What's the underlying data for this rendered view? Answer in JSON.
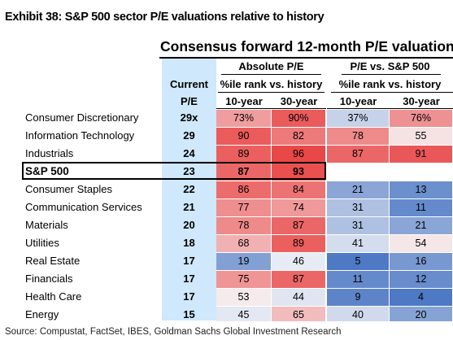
{
  "exhibit_title": "Exhibit 38: S&P 500 sector P/E valuations relative to history",
  "table_title": "Consensus forward 12-month P/E valuation",
  "headers": {
    "current": "Current",
    "pe": "P/E",
    "absolute": "Absolute P/E",
    "relative": "P/E vs. S&P 500",
    "rank_abs": "%ile rank vs. history",
    "rank_rel": "%ile rank vs. history",
    "ten_year": "10-year",
    "thirty_year": "30-year"
  },
  "rows": [
    {
      "name": "Consumer Discretionary",
      "pe": "29x",
      "abs10": "73%",
      "abs30": "90%",
      "rel10": "37%",
      "rel30": "76%"
    },
    {
      "name": "Information Technology",
      "pe": "29",
      "abs10": "90",
      "abs30": "82",
      "rel10": "78",
      "rel30": "55"
    },
    {
      "name": "Industrials",
      "pe": "24",
      "abs10": "89",
      "abs30": "96",
      "rel10": "87",
      "rel30": "91"
    },
    {
      "name": "S&P 500",
      "pe": "23",
      "abs10": "87",
      "abs30": "93",
      "rel10": "",
      "rel30": ""
    },
    {
      "name": "Consumer Staples",
      "pe": "22",
      "abs10": "86",
      "abs30": "84",
      "rel10": "21",
      "rel30": "13"
    },
    {
      "name": "Communication Services",
      "pe": "21",
      "abs10": "77",
      "abs30": "74",
      "rel10": "31",
      "rel30": "11"
    },
    {
      "name": "Materials",
      "pe": "20",
      "abs10": "78",
      "abs30": "87",
      "rel10": "31",
      "rel30": "21"
    },
    {
      "name": "Utilities",
      "pe": "18",
      "abs10": "68",
      "abs30": "89",
      "rel10": "41",
      "rel30": "54"
    },
    {
      "name": "Real Estate",
      "pe": "17",
      "abs10": "19",
      "abs30": "46",
      "rel10": "5",
      "rel30": "16"
    },
    {
      "name": "Financials",
      "pe": "17",
      "abs10": "75",
      "abs30": "87",
      "rel10": "11",
      "rel30": "12"
    },
    {
      "name": "Health Care",
      "pe": "17",
      "abs10": "53",
      "abs30": "44",
      "rel10": "9",
      "rel30": "4"
    },
    {
      "name": "Energy",
      "pe": "15",
      "abs10": "45",
      "abs30": "65",
      "rel10": "40",
      "rel30": "20"
    }
  ],
  "source": "Source: Compustat, FactSet, IBES, Goldman Sachs Global Investment Research"
}
